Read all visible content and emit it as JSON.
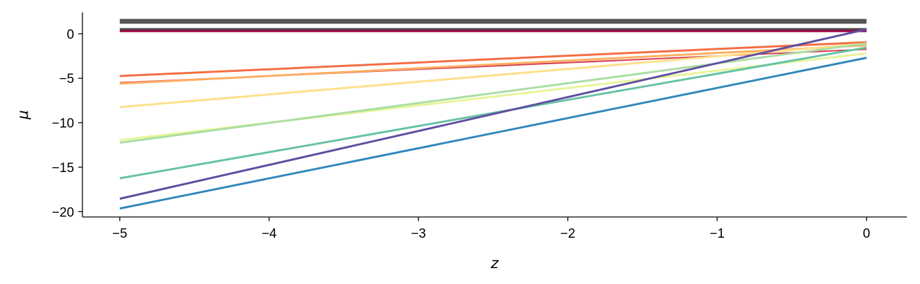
{
  "chart_data": {
    "type": "line",
    "xlabel": "z",
    "ylabel": "μ",
    "xlim": [
      -5.25,
      0.27
    ],
    "ylim": [
      -20.6,
      2.4
    ],
    "xticks": [
      -5,
      -4,
      -3,
      -2,
      -1,
      0
    ],
    "xtick_labels": [
      "−5",
      "−4",
      "−3",
      "−2",
      "−1",
      "0"
    ],
    "yticks": [
      0,
      -5,
      -10,
      -15,
      -20
    ],
    "ytick_labels": [
      "0",
      "−5",
      "−10",
      "−15",
      "−20"
    ],
    "grid": false,
    "series": [
      {
        "x": [
          -5,
          0
        ],
        "y": [
          1.4,
          1.4
        ],
        "color": "#555555",
        "width": 7
      },
      {
        "x": [
          -5,
          0
        ],
        "y": [
          0.45,
          0.45
        ],
        "color": "#4d4d4d",
        "width": 5
      },
      {
        "x": [
          -5,
          0
        ],
        "y": [
          0.3,
          0.3
        ],
        "color": "#9e0142",
        "width": 3
      },
      {
        "x": [
          -5,
          0
        ],
        "y": [
          -5.5,
          -1.75
        ],
        "color": "#d53e4f",
        "width": 2
      },
      {
        "x": [
          -5,
          0
        ],
        "y": [
          -4.75,
          -0.95
        ],
        "color": "#f46d43",
        "width": 3
      },
      {
        "x": [
          -5,
          0
        ],
        "y": [
          -5.6,
          -1.3
        ],
        "color": "#fdae61",
        "width": 3
      },
      {
        "x": [
          -5,
          0
        ],
        "y": [
          -8.25,
          -1.1
        ],
        "color": "#fee08b",
        "width": 3
      },
      {
        "x": [
          -5,
          0
        ],
        "y": [
          -11.95,
          -2.2
        ],
        "color": "#e6f598",
        "width": 3
      },
      {
        "x": [
          -5,
          0
        ],
        "y": [
          -12.25,
          -1.1
        ],
        "color": "#abdda4",
        "width": 3
      },
      {
        "x": [
          -5,
          0
        ],
        "y": [
          -16.25,
          -1.55
        ],
        "color": "#66c2a5",
        "width": 3
      },
      {
        "x": [
          -5,
          0
        ],
        "y": [
          -19.65,
          -2.7
        ],
        "color": "#3288bd",
        "width": 3
      },
      {
        "x": [
          -5,
          0
        ],
        "y": [
          -18.55,
          0.5
        ],
        "color": "#5e4fa2",
        "width": 3
      }
    ]
  }
}
